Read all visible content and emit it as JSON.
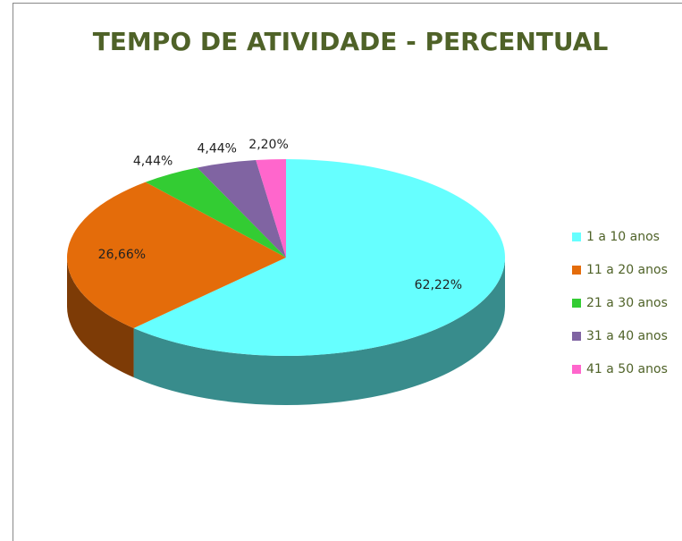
{
  "chart_data": {
    "type": "pie",
    "title": "TEMPO DE ATIVIDADE - PERCENTUAL",
    "categories": [
      "1 a 10 anos",
      "11 a 20 anos",
      "21 a 30 anos",
      "31 a 40 anos",
      "41 a 50 anos"
    ],
    "values": [
      62.22,
      26.66,
      4.44,
      4.44,
      2.2
    ],
    "value_labels": [
      "62,22%",
      "26,66%",
      "4,44%",
      "4,44%",
      "2,20%"
    ],
    "colors": [
      "#66ffff",
      "#e46c0a",
      "#33cc33",
      "#8064a2",
      "#ff66cc"
    ],
    "legend": "right"
  }
}
